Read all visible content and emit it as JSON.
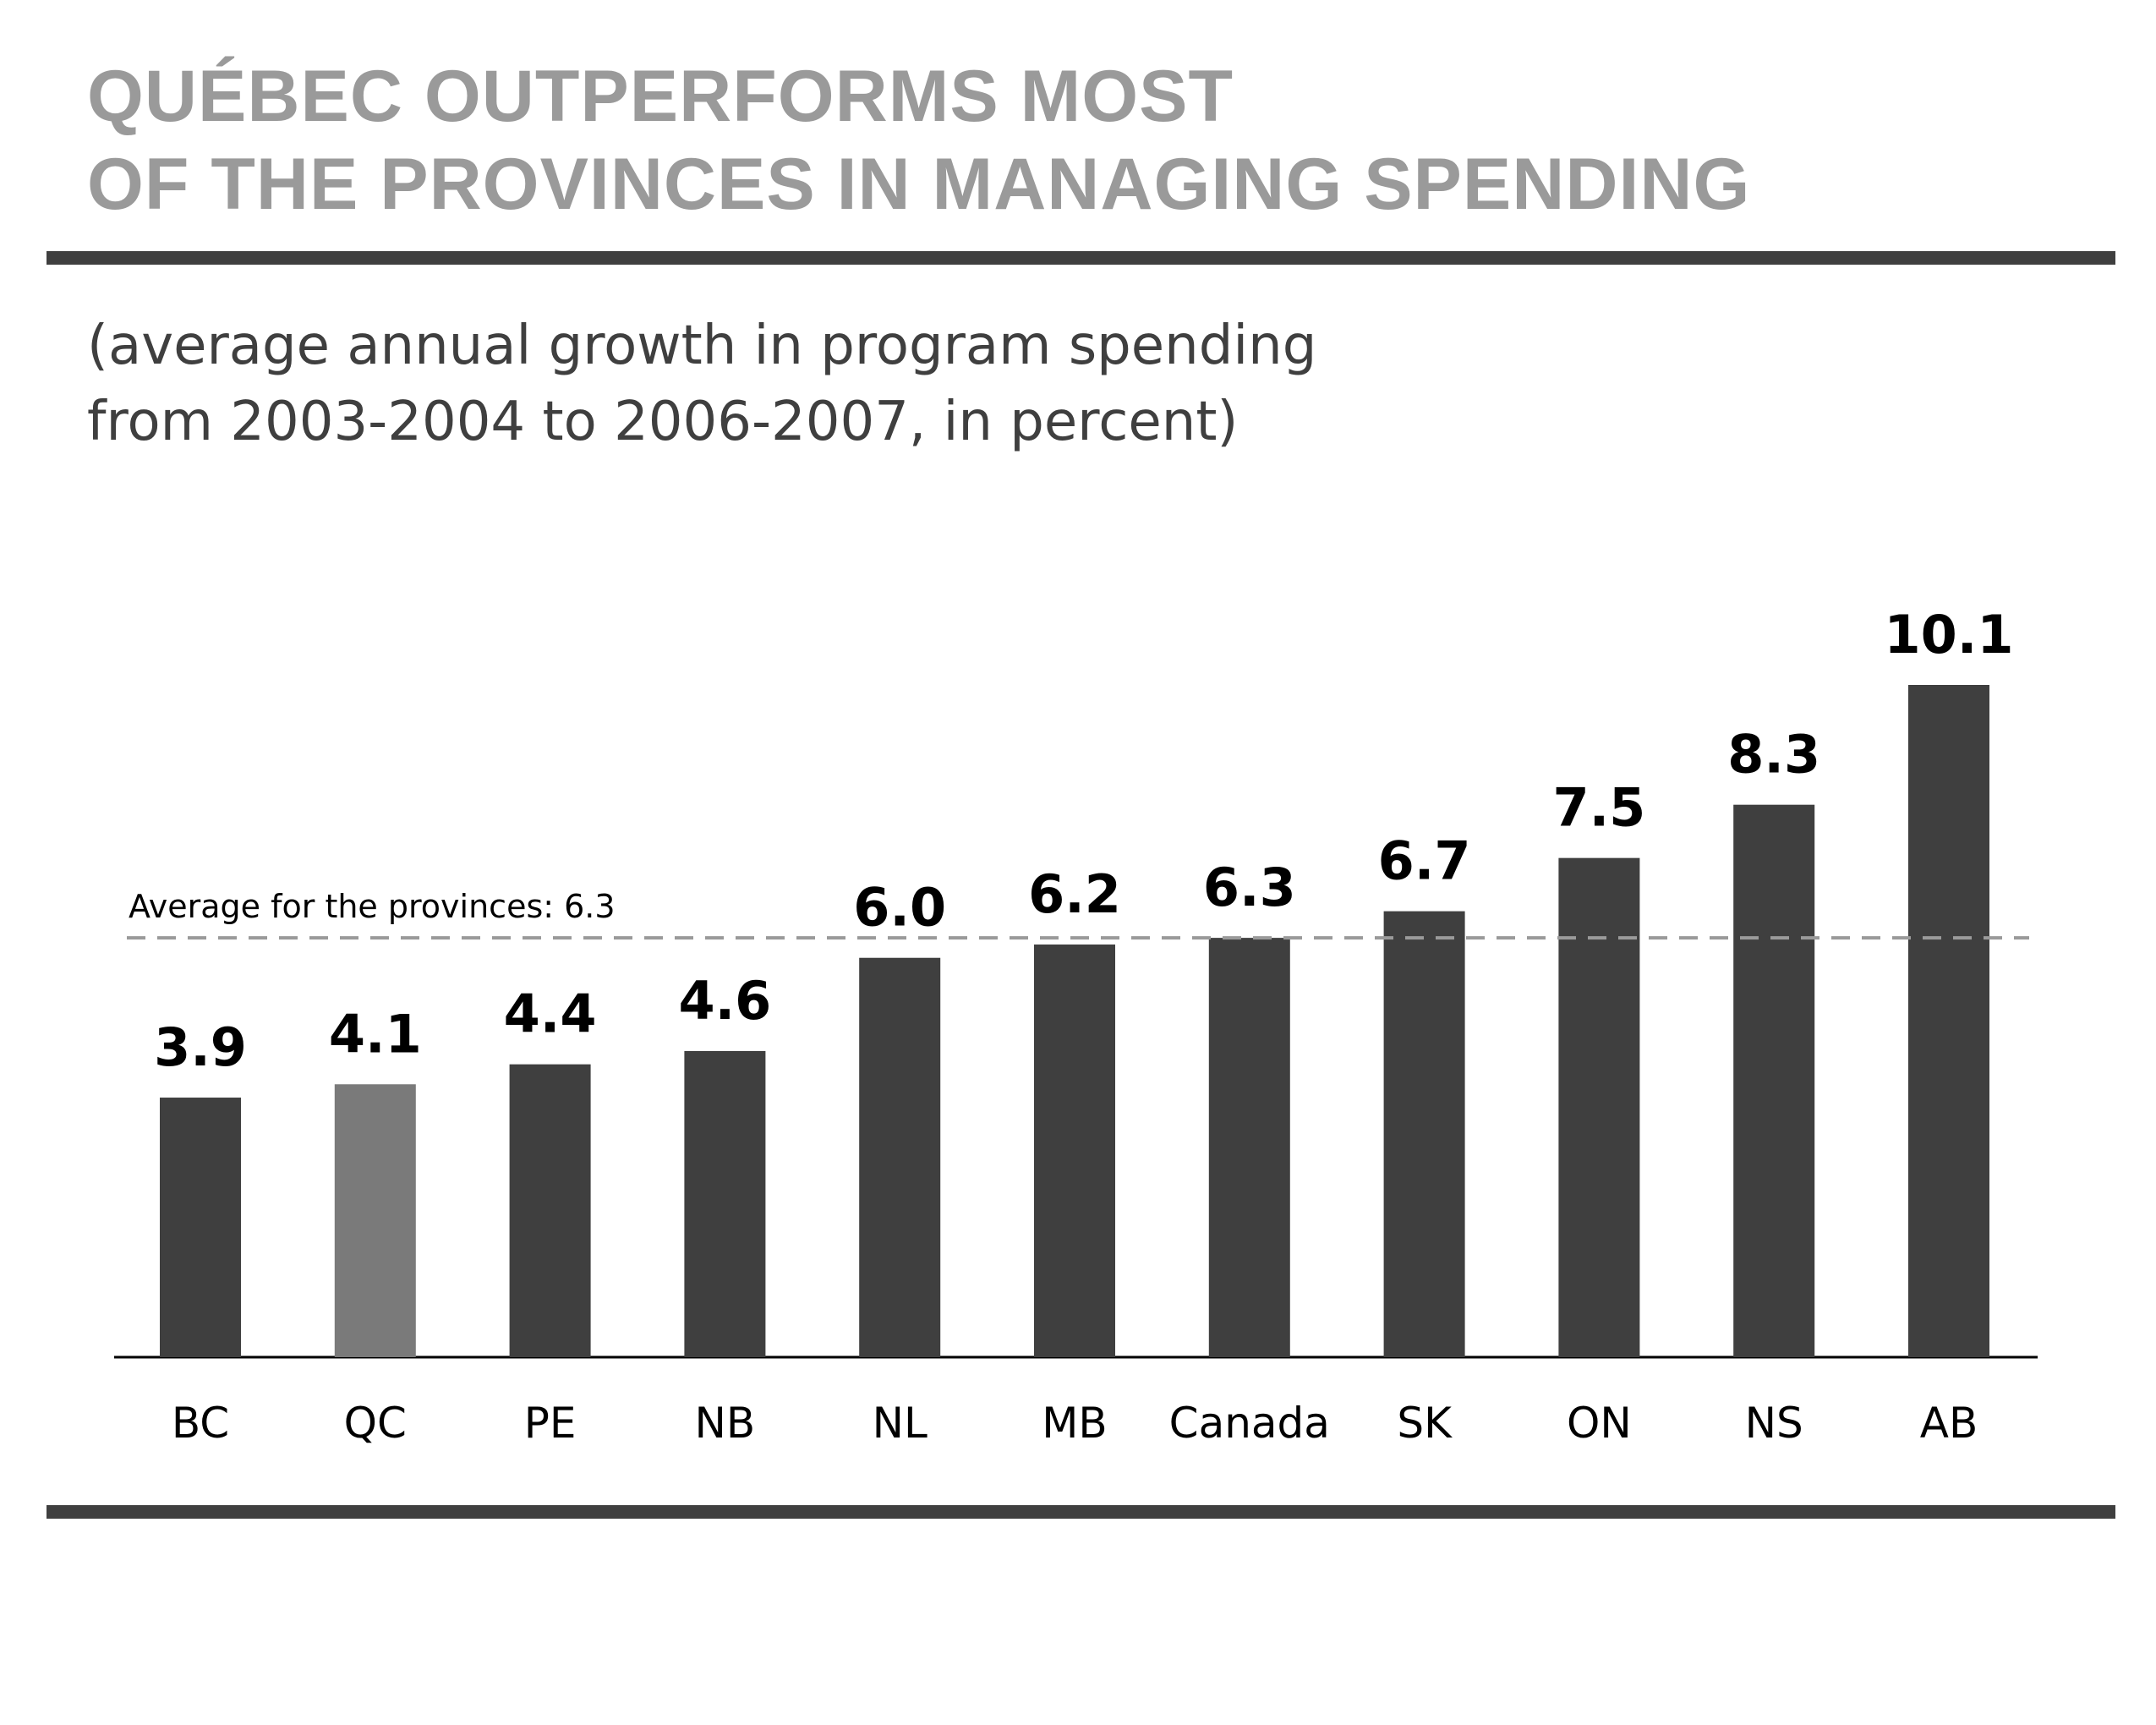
{
  "title_lines": [
    "QUÉBEC OUTPERFORMS MOST",
    "OF THE PROVINCES IN MANAGING SPENDING"
  ],
  "subtitle_lines": [
    "(average annual growth in program spending",
    "from 2003-2004 to 2006-2007, in percent)"
  ],
  "colors": {
    "bar": "#3f3f3f",
    "highlight_bar": "#7a7a7a",
    "title": "#9a9a9a",
    "text": "#3f3f3f",
    "reference_line": "#9a9a9a"
  },
  "chart_data": {
    "type": "bar",
    "title": "QUÉBEC OUTPERFORMS MOST OF THE PROVINCES IN MANAGING SPENDING",
    "subtitle": "(average annual growth in program spending from 2003-2004 to 2006-2007, in percent)",
    "categories": [
      "BC",
      "QC",
      "PE",
      "NB",
      "NL",
      "MB",
      "Canada",
      "SK",
      "ON",
      "NS",
      "AB"
    ],
    "values": [
      3.9,
      4.1,
      4.4,
      4.6,
      6.0,
      6.2,
      6.3,
      6.7,
      7.5,
      8.3,
      10.1
    ],
    "value_labels": [
      "3.9",
      "4.1",
      "4.4",
      "4.6",
      "6.0",
      "6.2",
      "6.3",
      "6.7",
      "7.5",
      "8.3",
      "10.1"
    ],
    "highlight_category": "QC",
    "reference_line": {
      "value": 6.3,
      "label": "Average for the provinces: 6.3",
      "style": "dashed"
    },
    "xlabel": "",
    "ylabel": "",
    "ylim": [
      0,
      10.1
    ],
    "grid": false,
    "legend": "none"
  }
}
